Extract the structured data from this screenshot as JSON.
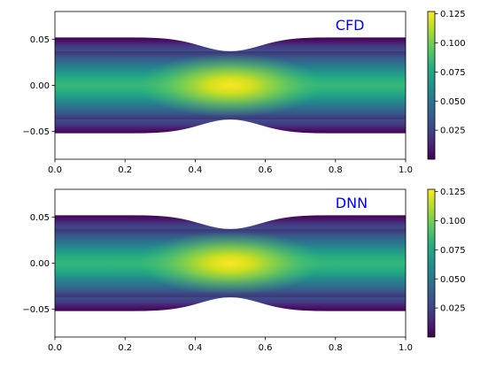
{
  "chart_data": [
    {
      "type": "heatmap",
      "annotation": "CFD",
      "xlim": [
        0,
        1
      ],
      "ylim": [
        -0.08,
        0.08
      ],
      "xticks": [
        "0.0",
        "0.2",
        "0.4",
        "0.6",
        "0.8",
        "1.0"
      ],
      "yticks": [
        "0.05",
        "0.00",
        "−0.05"
      ],
      "colorbar": {
        "ticks": [
          "0.125",
          "0.100",
          "0.075",
          "0.050",
          "0.025"
        ],
        "min": 0.0,
        "max": 0.127,
        "colormap": "viridis"
      },
      "wall": {
        "half_width": 0.052,
        "throat_half_width": 0.037,
        "throat_x": 0.5
      },
      "peak_value": 0.127,
      "peak_x": 0.5,
      "grid": false
    },
    {
      "type": "heatmap",
      "annotation": "DNN",
      "xlim": [
        0,
        1
      ],
      "ylim": [
        -0.08,
        0.08
      ],
      "xticks": [
        "0.0",
        "0.2",
        "0.4",
        "0.6",
        "0.8",
        "1.0"
      ],
      "yticks": [
        "0.05",
        "0.00",
        "−0.05"
      ],
      "colorbar": {
        "ticks": [
          "0.125",
          "0.100",
          "0.075",
          "0.050",
          "0.025"
        ],
        "min": 0.0,
        "max": 0.127,
        "colormap": "viridis"
      },
      "wall": {
        "half_width": 0.052,
        "throat_half_width": 0.037,
        "throat_x": 0.5
      },
      "peak_value": 0.127,
      "peak_x": 0.5,
      "grid": false
    }
  ],
  "colors": {
    "annotation": "#0000ff"
  }
}
